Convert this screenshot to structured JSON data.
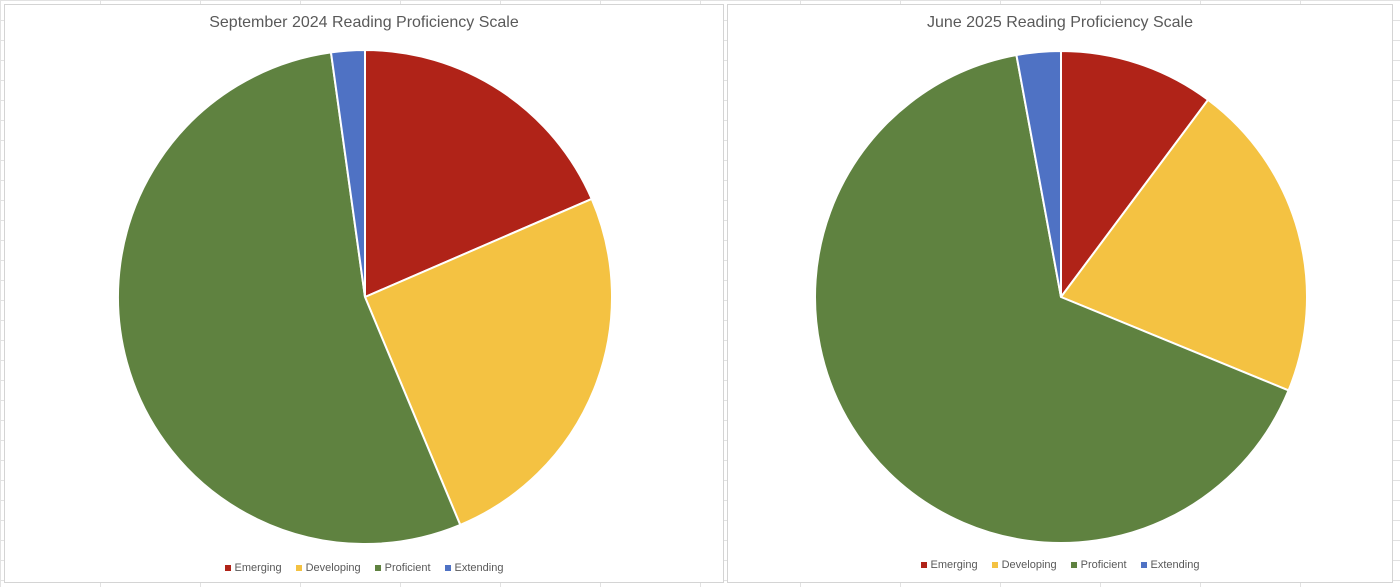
{
  "chart_data": [
    {
      "type": "pie",
      "title": "September 2024 Reading Proficiency Scale",
      "categories": [
        "Emerging",
        "Developing",
        "Proficient",
        "Extending"
      ],
      "values": [
        18.5,
        25.2,
        54.1,
        2.2
      ],
      "colors": [
        "#b02318",
        "#f4c242",
        "#5f8240",
        "#4f72c4"
      ],
      "legend": "bottom"
    },
    {
      "type": "pie",
      "title": "June 2025 Reading Proficiency Scale",
      "categories": [
        "Emerging",
        "Developing",
        "Proficient",
        "Extending"
      ],
      "values": [
        10.2,
        21.0,
        65.9,
        2.9
      ],
      "colors": [
        "#b02318",
        "#f4c242",
        "#5f8240",
        "#4f72c4"
      ],
      "legend": "bottom"
    }
  ]
}
